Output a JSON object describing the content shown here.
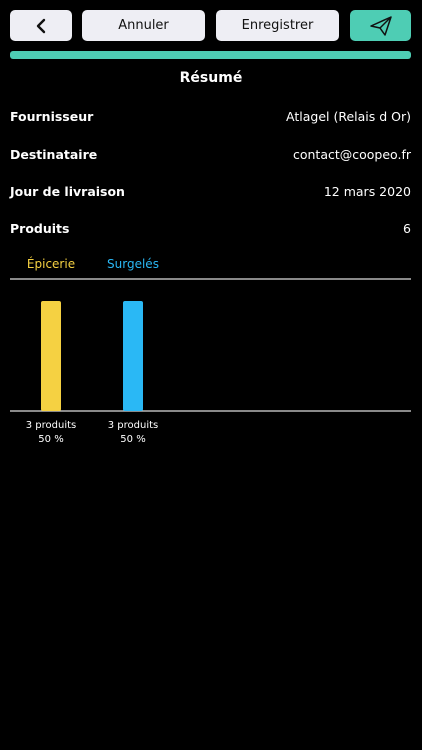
{
  "header": {
    "cancel": "Annuler",
    "save": "Enregistrer",
    "title": "Résumé"
  },
  "details": [
    {
      "label": "Fournisseur",
      "value": "Atlagel (Relais d Or)"
    },
    {
      "label": "Destinataire",
      "value": "contact@coopeo.fr"
    },
    {
      "label": "Jour de livraison",
      "value": "12 mars 2020"
    },
    {
      "label": "Produits",
      "value": "6"
    }
  ],
  "chart_data": {
    "type": "bar",
    "categories": [
      "Épicerie",
      "Surgelés"
    ],
    "colors": [
      "#f5d142",
      "#2ab8f5"
    ],
    "values": [
      50,
      50
    ],
    "value_labels": [
      "50 %",
      "50 %"
    ],
    "count_labels": [
      "3 produits",
      "3 produits"
    ],
    "ylim": [
      0,
      60
    ]
  }
}
